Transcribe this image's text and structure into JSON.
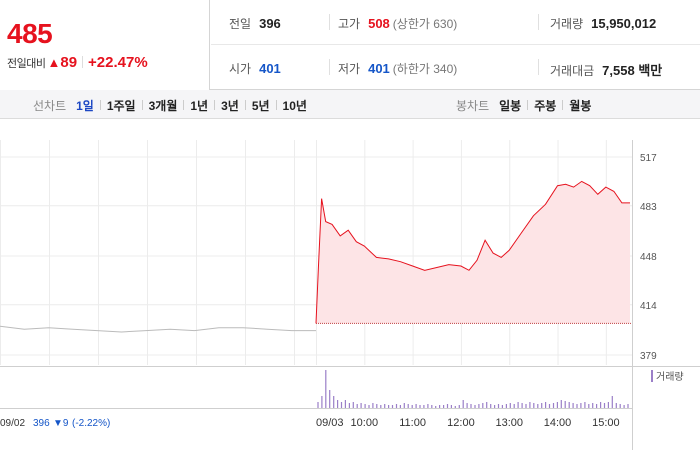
{
  "header": {
    "price": "485",
    "change_label": "전일대비",
    "change_arrow": "▲",
    "change_amount": "89",
    "change_pct": "+22.47%"
  },
  "stats": {
    "prev_close": {
      "label": "전일",
      "value": "396"
    },
    "high": {
      "label": "고가",
      "value": "508",
      "sub": "(상한가 630)"
    },
    "volume": {
      "label": "거래량",
      "value": "15,950,012"
    },
    "open": {
      "label": "시가",
      "value": "401"
    },
    "low": {
      "label": "저가",
      "value": "401",
      "sub": "(하한가 340)"
    },
    "amount": {
      "label": "거래대금",
      "value": "7,558 백만"
    }
  },
  "line_tabs": {
    "title": "선차트",
    "items": [
      {
        "label": "1일",
        "active": true
      },
      {
        "label": "1주일",
        "active": false
      },
      {
        "label": "3개월",
        "active": false
      },
      {
        "label": "1년",
        "active": false
      },
      {
        "label": "3년",
        "active": false
      },
      {
        "label": "5년",
        "active": false
      },
      {
        "label": "10년",
        "active": false
      }
    ]
  },
  "candle_tabs": {
    "title": "봉차트",
    "items": [
      {
        "label": "일봉"
      },
      {
        "label": "주봉"
      },
      {
        "label": "월봉"
      }
    ]
  },
  "colors": {
    "up": "#e6121e",
    "down": "#1556c8",
    "area_fill": "#fde4e6",
    "prev_line": "#bbbbbb",
    "volume": "#9b7fc8",
    "active_tab": "#1d48c4"
  },
  "chart_data": {
    "type": "area",
    "ylim": [
      379,
      517
    ],
    "ytick_labels": [
      "517",
      "483",
      "448",
      "414",
      "379"
    ],
    "baseline": 401,
    "xtick_labels": [
      "09/03",
      "10:00",
      "11:00",
      "12:00",
      "13:00",
      "14:00",
      "15:00"
    ],
    "prev_day_label": "09/02",
    "prev_day_close": "396",
    "prev_day_change": "▼9",
    "prev_day_change_pct": "(-2.22%)",
    "volume_legend": "거래량",
    "prev_day": [
      {
        "t": "09:00",
        "v": 399
      },
      {
        "t": "09:30",
        "v": 397
      },
      {
        "t": "10:00",
        "v": 398
      },
      {
        "t": "10:30",
        "v": 397
      },
      {
        "t": "11:00",
        "v": 396
      },
      {
        "t": "11:30",
        "v": 395
      },
      {
        "t": "12:00",
        "v": 396
      },
      {
        "t": "12:30",
        "v": 397
      },
      {
        "t": "13:00",
        "v": 396
      },
      {
        "t": "13:30",
        "v": 398
      },
      {
        "t": "14:00",
        "v": 398
      },
      {
        "t": "14:30",
        "v": 397
      },
      {
        "t": "15:00",
        "v": 396
      },
      {
        "t": "15:30",
        "v": 396
      }
    ],
    "today": [
      {
        "t": "09:00",
        "v": 401
      },
      {
        "t": "09:03",
        "v": 440
      },
      {
        "t": "09:07",
        "v": 488
      },
      {
        "t": "09:12",
        "v": 472
      },
      {
        "t": "09:20",
        "v": 470
      },
      {
        "t": "09:30",
        "v": 462
      },
      {
        "t": "09:40",
        "v": 466
      },
      {
        "t": "09:50",
        "v": 458
      },
      {
        "t": "10:00",
        "v": 455
      },
      {
        "t": "10:15",
        "v": 447
      },
      {
        "t": "10:30",
        "v": 446
      },
      {
        "t": "10:45",
        "v": 444
      },
      {
        "t": "11:00",
        "v": 441
      },
      {
        "t": "11:15",
        "v": 438
      },
      {
        "t": "11:30",
        "v": 440
      },
      {
        "t": "11:45",
        "v": 442
      },
      {
        "t": "12:00",
        "v": 441
      },
      {
        "t": "12:10",
        "v": 438
      },
      {
        "t": "12:20",
        "v": 445
      },
      {
        "t": "12:30",
        "v": 459
      },
      {
        "t": "12:40",
        "v": 450
      },
      {
        "t": "12:50",
        "v": 447
      },
      {
        "t": "13:00",
        "v": 452
      },
      {
        "t": "13:15",
        "v": 464
      },
      {
        "t": "13:30",
        "v": 476
      },
      {
        "t": "13:45",
        "v": 484
      },
      {
        "t": "14:00",
        "v": 497
      },
      {
        "t": "14:10",
        "v": 498
      },
      {
        "t": "14:20",
        "v": 496
      },
      {
        "t": "14:30",
        "v": 500
      },
      {
        "t": "14:40",
        "v": 497
      },
      {
        "t": "14:50",
        "v": 491
      },
      {
        "t": "15:00",
        "v": 496
      },
      {
        "t": "15:10",
        "v": 493
      },
      {
        "t": "15:20",
        "v": 485
      },
      {
        "t": "15:30",
        "v": 485
      }
    ],
    "volume": [
      6,
      12,
      38,
      18,
      12,
      8,
      6,
      8,
      5,
      6,
      4,
      5,
      4,
      3,
      5,
      4,
      3,
      4,
      3,
      3,
      4,
      3,
      5,
      4,
      3,
      4,
      3,
      3,
      4,
      3,
      2,
      3,
      3,
      4,
      3,
      2,
      3,
      8,
      5,
      4,
      3,
      4,
      5,
      6,
      4,
      3,
      4,
      3,
      4,
      5,
      4,
      6,
      5,
      4,
      6,
      5,
      4,
      5,
      6,
      4,
      5,
      6,
      8,
      7,
      6,
      5,
      4,
      5,
      6,
      4,
      5,
      4,
      6,
      5,
      6,
      12,
      5,
      4,
      3,
      4
    ]
  }
}
